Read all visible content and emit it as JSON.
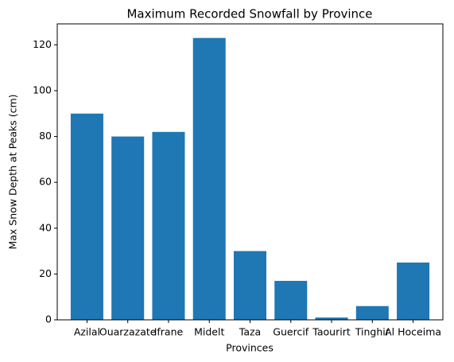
{
  "chart_data": {
    "type": "bar",
    "title": "Maximum Recorded Snowfall by Province",
    "x_label": "Provinces",
    "y_label": "Max Snow Depth at Peaks (cm)",
    "categories": [
      "Azilal",
      "Ouarzazate",
      "Ifrane",
      "Midelt",
      "Taza",
      "Guercif",
      "Taourirt",
      "Tinghir",
      "Al Hoceima"
    ],
    "values": [
      90,
      80,
      82,
      123,
      30,
      17,
      1,
      6,
      25
    ],
    "color": "#1f77b4",
    "ylim": [
      0,
      129.15
    ],
    "yticks": [
      0,
      20,
      40,
      60,
      80,
      100,
      120
    ],
    "grid": false
  }
}
